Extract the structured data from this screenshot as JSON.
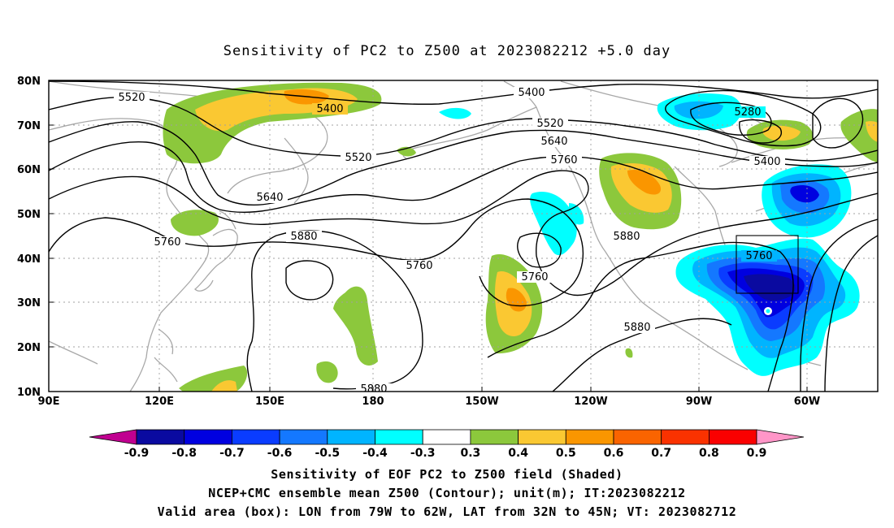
{
  "title": "Sensitivity of PC2 to Z500 at 2023082212 +5.0 day",
  "lat_labels": [
    "80N",
    "70N",
    "60N",
    "50N",
    "40N",
    "30N",
    "20N",
    "10N"
  ],
  "lon_labels": [
    "90E",
    "120E",
    "150E",
    "180",
    "150W",
    "120W",
    "90W",
    "60W"
  ],
  "contour_labels": [
    "5520",
    "5400",
    "5400",
    "5280",
    "5520",
    "5640",
    "5520",
    "5760",
    "5640",
    "5400",
    "5760",
    "5880",
    "5760",
    "5760",
    "5880",
    "5760",
    "5880",
    "5880"
  ],
  "colorbar": {
    "ticks": [
      "-0.9",
      "-0.8",
      "-0.7",
      "-0.6",
      "-0.5",
      "-0.4",
      "-0.3",
      "0.3",
      "0.4",
      "0.5",
      "0.6",
      "0.7",
      "0.8",
      "0.9"
    ],
    "colors": [
      "#c00090",
      "#0a0aa0",
      "#0000e0",
      "#0a3cff",
      "#1478ff",
      "#00b4ff",
      "#00ffff",
      "#ffffff",
      "#8cc83c",
      "#fac832",
      "#fa9600",
      "#fa6400",
      "#fa3200",
      "#fa0000",
      "#ff96c8"
    ]
  },
  "captions": [
    "Sensitivity of EOF PC2 to Z500 field (Shaded)",
    "NCEP+CMC ensemble mean Z500 (Contour); unit(m); IT:2023082212",
    "Valid area (box): LON from 79W to 62W, LAT from 32N to 45N; VT: 2023082712"
  ]
}
